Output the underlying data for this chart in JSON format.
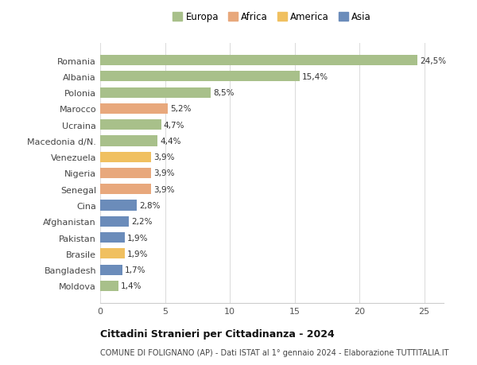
{
  "categories": [
    "Romania",
    "Albania",
    "Polonia",
    "Marocco",
    "Ucraina",
    "Macedonia d/N.",
    "Venezuela",
    "Nigeria",
    "Senegal",
    "Cina",
    "Afghanistan",
    "Pakistan",
    "Brasile",
    "Bangladesh",
    "Moldova"
  ],
  "values": [
    24.5,
    15.4,
    8.5,
    5.2,
    4.7,
    4.4,
    3.9,
    3.9,
    3.9,
    2.8,
    2.2,
    1.9,
    1.9,
    1.7,
    1.4
  ],
  "labels": [
    "24,5%",
    "15,4%",
    "8,5%",
    "5,2%",
    "4,7%",
    "4,4%",
    "3,9%",
    "3,9%",
    "3,9%",
    "2,8%",
    "2,2%",
    "1,9%",
    "1,9%",
    "1,7%",
    "1,4%"
  ],
  "colors": [
    "#a8c08a",
    "#a8c08a",
    "#a8c08a",
    "#e8a87c",
    "#a8c08a",
    "#a8c08a",
    "#f0c060",
    "#e8a87c",
    "#e8a87c",
    "#6b8cba",
    "#6b8cba",
    "#6b8cba",
    "#f0c060",
    "#6b8cba",
    "#a8c08a"
  ],
  "legend_labels": [
    "Europa",
    "Africa",
    "America",
    "Asia"
  ],
  "legend_colors": [
    "#a8c08a",
    "#e8a87c",
    "#f0c060",
    "#6b8cba"
  ],
  "title": "Cittadini Stranieri per Cittadinanza - 2024",
  "subtitle": "COMUNE DI FOLIGNANO (AP) - Dati ISTAT al 1° gennaio 2024 - Elaborazione TUTTITALIA.IT",
  "xlim": [
    0,
    26.5
  ],
  "xticks": [
    0,
    5,
    10,
    15,
    20,
    25
  ],
  "background_color": "#ffffff",
  "grid_color": "#dddddd",
  "bar_height": 0.65
}
